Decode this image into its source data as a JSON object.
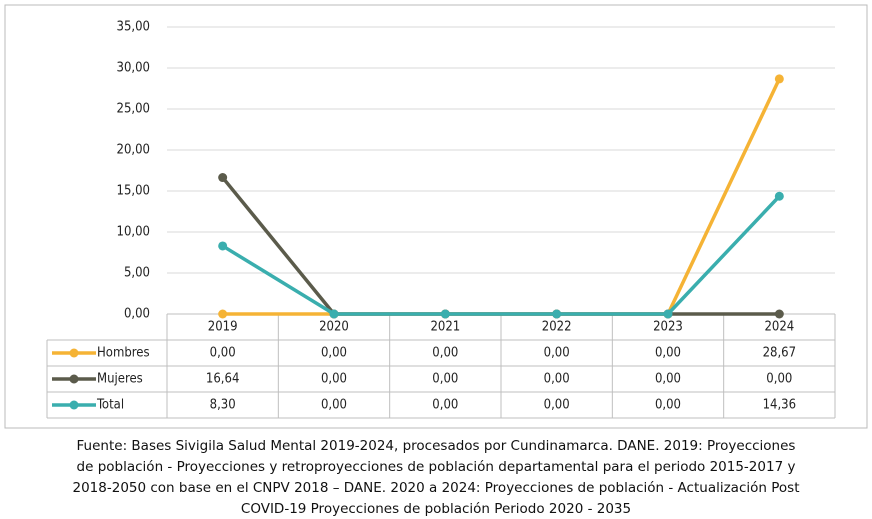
{
  "chart_data": {
    "type": "line",
    "categories": [
      "2019",
      "2020",
      "2021",
      "2022",
      "2023",
      "2024"
    ],
    "series": [
      {
        "name": "Hombres",
        "color": "#f5b335",
        "values": [
          0,
          0,
          0,
          0,
          0,
          28.67
        ],
        "value_labels": [
          "0,00",
          "0,00",
          "0,00",
          "0,00",
          "0,00",
          "28,67"
        ]
      },
      {
        "name": "Mujeres",
        "color": "#5b5b4b",
        "values": [
          16.64,
          0,
          0,
          0,
          0,
          0
        ],
        "value_labels": [
          "16,64",
          "0,00",
          "0,00",
          "0,00",
          "0,00",
          "0,00"
        ]
      },
      {
        "name": "Total",
        "color": "#3aaeae",
        "values": [
          8.3,
          0,
          0,
          0,
          0,
          14.36
        ],
        "value_labels": [
          "8,30",
          "0,00",
          "0,00",
          "0,00",
          "0,00",
          "14,36"
        ]
      }
    ],
    "ylim": [
      0,
      35
    ],
    "yticks": [
      {
        "value": 0,
        "label": "0,00"
      },
      {
        "value": 5,
        "label": "5,00"
      },
      {
        "value": 10,
        "label": "10,00"
      },
      {
        "value": 15,
        "label": "15,00"
      },
      {
        "value": 20,
        "label": "20,00"
      },
      {
        "value": 25,
        "label": "25,00"
      },
      {
        "value": 30,
        "label": "30,00"
      },
      {
        "value": 35,
        "label": "35,00"
      }
    ],
    "grid": true,
    "source": [
      "Fuente: Bases Sivigila Salud Mental 2019-2024, procesados por Cundinamarca. DANE. 2019: Proyecciones",
      "de población - Proyecciones y retroproyecciones de población departamental para el periodo 2015-2017 y",
      "2018-2050 con base en el CNPV 2018 – DANE. 2020 a 2024: Proyecciones de población - Actualización Post",
      "COVID-19 Proyecciones de población Periodo 2020 - 2035"
    ]
  }
}
